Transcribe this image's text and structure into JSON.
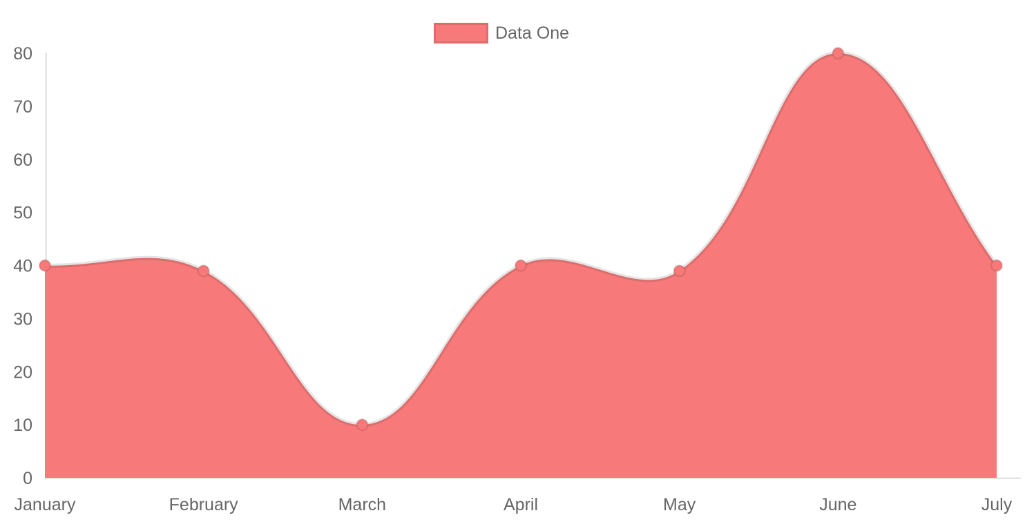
{
  "chart_data": {
    "type": "area",
    "title": "",
    "xlabel": "",
    "ylabel": "",
    "categories": [
      "January",
      "February",
      "March",
      "April",
      "May",
      "June",
      "July"
    ],
    "series": [
      {
        "name": "Data One",
        "values": [
          40,
          39,
          10,
          40,
          39,
          80,
          40
        ]
      }
    ],
    "ylim": [
      0,
      80
    ],
    "yticks": [
      0,
      10,
      20,
      30,
      40,
      50,
      60,
      70,
      80
    ],
    "grid": false,
    "legend_position": "top",
    "line_tension": 0.4,
    "colors": {
      "series_fill": "#f87979",
      "series_border": "rgba(0,0,0,0.1)",
      "axis_line": "rgba(0,0,0,0.1)",
      "tick_text": "#666666"
    }
  },
  "legend": {
    "items": [
      {
        "label": "Data One",
        "swatch_color": "#f87979",
        "swatch_border": "rgba(0,0,0,0.1)"
      }
    ]
  }
}
